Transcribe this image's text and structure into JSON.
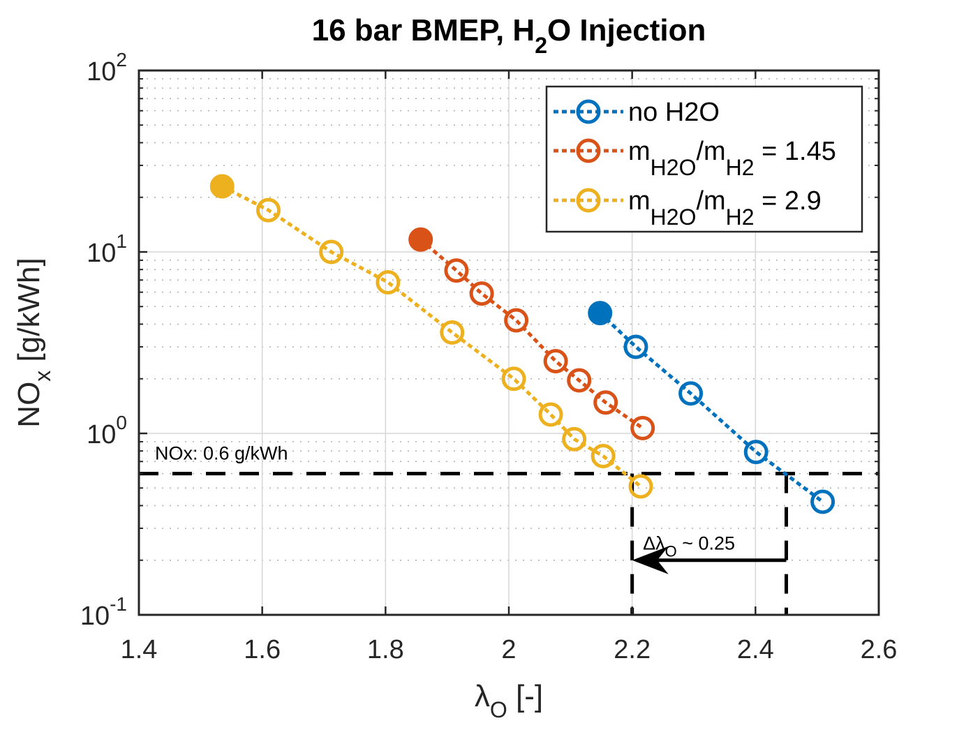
{
  "chart_data": {
    "type": "line",
    "title": "16 bar BMEP, H2O Injection",
    "title_parts": {
      "pre": "16 bar BMEP, H",
      "sub": "2",
      "post": "O Injection"
    },
    "xlabel": "λO [-]",
    "xlabel_parts": {
      "main": "λ",
      "sub": "O",
      "post": " [-]"
    },
    "ylabel": "NOx [g/kWh]",
    "ylabel_parts": {
      "main": "NO",
      "sub": "x",
      "post": " [g/kWh]"
    },
    "xlim": [
      1.4,
      2.6
    ],
    "ylim": [
      0.1,
      100
    ],
    "yscale": "log",
    "grid": true,
    "minor_grid": true,
    "x_ticks": [
      1.4,
      1.6,
      1.8,
      2.0,
      2.2,
      2.4,
      2.6
    ],
    "x_tick_labels": [
      "1.4",
      "1.6",
      "1.8",
      "2",
      "2.2",
      "2.4",
      "2.6"
    ],
    "y_ticks": [
      0.1,
      1,
      10,
      100
    ],
    "y_tick_labels": [
      {
        "base": "10",
        "exp": "-1"
      },
      {
        "base": "10",
        "exp": "0"
      },
      {
        "base": "10",
        "exp": "1"
      },
      {
        "base": "10",
        "exp": "2"
      }
    ],
    "legend_position": "top-right",
    "series": [
      {
        "name": "no H2O",
        "legend": {
          "pre": "no H2O",
          "sub1": "",
          "mid": "",
          "sub2": "",
          "post": ""
        },
        "color": "#0072BD",
        "x": [
          2.148,
          2.206,
          2.295,
          2.401,
          2.509
        ],
        "y": [
          4.6,
          3.0,
          1.66,
          0.79,
          0.42
        ],
        "first_point_filled": true
      },
      {
        "name": "mH2O/mH2 = 1.45",
        "legend": {
          "pre": "m",
          "sub1": "H2O",
          "mid": "/m",
          "sub2": "H2",
          "post": " = 1.45"
        },
        "color": "#D95319",
        "x": [
          1.857,
          1.915,
          1.956,
          2.012,
          2.076,
          2.114,
          2.157,
          2.217
        ],
        "y": [
          11.7,
          7.9,
          5.9,
          4.2,
          2.5,
          1.96,
          1.48,
          1.07
        ],
        "first_point_filled": true
      },
      {
        "name": "mH2O/mH2 = 2.9",
        "legend": {
          "pre": "m",
          "sub1": "H2O",
          "mid": "/m",
          "sub2": "H2",
          "post": " = 2.9"
        },
        "color": "#EDB120",
        "x": [
          1.535,
          1.61,
          1.712,
          1.804,
          1.908,
          2.008,
          2.068,
          2.106,
          2.153,
          2.214
        ],
        "y": [
          23.0,
          17.0,
          10.0,
          6.8,
          3.6,
          2.0,
          1.27,
          0.93,
          0.75,
          0.51
        ],
        "first_point_filled": true
      }
    ],
    "annotations": {
      "nox_limit": {
        "value": 0.6,
        "label": "NOx: 0.6 g/kWh"
      },
      "vertical_lines": [
        2.2,
        2.45
      ],
      "arrow": {
        "from_x": 2.45,
        "to_x": 2.2,
        "y": 0.2
      },
      "delta_label": {
        "pre": "Δλ",
        "sub": "O",
        "post": " ~ 0.25",
        "x": 2.325,
        "y": 0.25
      }
    }
  }
}
